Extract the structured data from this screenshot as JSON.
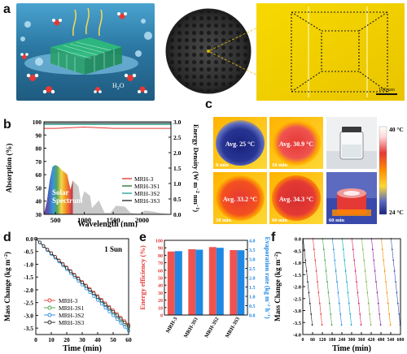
{
  "panel_labels": {
    "a": "a",
    "b": "b",
    "c": "c",
    "d": "d",
    "e": "e",
    "f": "f"
  },
  "panel_a": {
    "water_label": "H",
    "water_sub": "2",
    "water_tail": "O",
    "scale_bar": "100 μm",
    "colors": {
      "inset_left_bg": "#2e7ca7",
      "sample": "#3a3a3a",
      "micro_bg": "#f6d400",
      "micro_frame": "#e8c800"
    }
  },
  "panel_b": {
    "ylabel_left": "Absorption (%)",
    "ylabel_right_parts": [
      "Energy Density (W m",
      "−2",
      " nm",
      "−1",
      ")"
    ],
    "xlabel": "Wavelength (nm)",
    "solar_label": [
      "Solar",
      "Spectrum"
    ],
    "legend": [
      {
        "name": "MRH-3",
        "color": "#e53935"
      },
      {
        "name": "MRH-3S1",
        "color": "#2e7d32"
      },
      {
        "name": "MRH-3S2",
        "color": "#26a69a"
      },
      {
        "name": "MRH-3S3",
        "color": "#263238"
      }
    ],
    "xticks": [
      "500",
      "1000",
      "1500",
      "2000"
    ],
    "yticks_left": [
      "30",
      "40",
      "50",
      "60",
      "70",
      "80",
      "90",
      "100"
    ],
    "yticks_right": [
      "0.0",
      "0.5",
      "1.0",
      "1.5",
      "2.0",
      "2.5",
      "3.0"
    ]
  },
  "panel_c": {
    "thermal": [
      {
        "avg": "Avg. 25 °C",
        "time": "0 min"
      },
      {
        "avg": "Avg. 30.9 °C",
        "time": "10 min"
      },
      {
        "avg": "Avg. 33.2 °C",
        "time": "30 min"
      },
      {
        "avg": "Avg. 34.3 °C",
        "time": "60 min"
      }
    ],
    "photo_label": "60 min",
    "scale_top": "40 °C",
    "scale_bottom": "24 °C"
  },
  "panel_d": {
    "ylabel_parts": [
      "Mass Change (kg m",
      "−2",
      ")"
    ],
    "xlabel": "Time (min)",
    "sun": "1 Sun",
    "xticks": [
      "0",
      "10",
      "20",
      "30",
      "40",
      "50",
      "60"
    ],
    "yticks": [
      "0.0",
      "-0.5",
      "-1.0",
      "-1.5",
      "-2.0",
      "-2.5",
      "-3.0",
      "-3.5"
    ],
    "legend": [
      {
        "name": "MRH-3",
        "color": "#e53935"
      },
      {
        "name": "MRH-3S1",
        "color": "#43a047"
      },
      {
        "name": "MRH-3S2",
        "color": "#1e88e5"
      },
      {
        "name": "MRH-3S3",
        "color": "#222222"
      }
    ]
  },
  "panel_e": {
    "ylabel_left": "Energy efficiency (%)",
    "ylabel_right_parts": [
      "Evaporation rate (kg m",
      "−2",
      " h",
      "−1",
      ")"
    ],
    "categories": [
      "MRH-3",
      "MRH-3S1",
      "MRH-3S2",
      "MRH-3S3"
    ],
    "yticks_left": [
      "0",
      "10",
      "20",
      "30",
      "40",
      "50",
      "60",
      "70",
      "80",
      "90",
      "100"
    ],
    "yticks_right": [
      "0.0",
      "0.5",
      "1.0",
      "1.5",
      "2.0",
      "2.5",
      "3.0",
      "3.5",
      "4.0"
    ],
    "colors": {
      "left": "#ef5350",
      "right": "#1e88e5"
    }
  },
  "panel_f": {
    "ylabel_parts": [
      "Mass Change (kg m",
      "−2",
      ")"
    ],
    "xlabel": "Time (min)",
    "xticks": [
      "0",
      "60",
      "120",
      "180",
      "240",
      "300",
      "360",
      "420",
      "480",
      "540",
      "600"
    ],
    "yticks": [
      "0.0",
      "-0.5",
      "-1.0",
      "-1.5",
      "-2.0",
      "-2.5",
      "-3.0",
      "-3.5",
      "-4.0"
    ],
    "cycle_colors": [
      "#212121",
      "#e53935",
      "#43a047",
      "#1e88e5",
      "#00acc1",
      "#d81b60",
      "#7cb342",
      "#8e24aa",
      "#fb8c00",
      "#3949ab"
    ]
  },
  "chart_data": [
    {
      "type": "line",
      "panel": "b",
      "xlabel": "Wavelength (nm)",
      "ylabel": "Absorption (%)",
      "xlim": [
        300,
        2500
      ],
      "ylim": [
        30,
        100
      ],
      "y2label": "Energy Density (W m−2 nm−1)",
      "y2lim": [
        0,
        3.0
      ],
      "series": [
        {
          "name": "MRH-3",
          "x": [
            300,
            500,
            1000,
            1500,
            2000,
            2500
          ],
          "y": [
            95,
            95,
            96,
            95,
            95,
            95
          ]
        },
        {
          "name": "MRH-3S1",
          "x": [
            300,
            500,
            1000,
            1500,
            2000,
            2500
          ],
          "y": [
            98,
            98,
            98,
            98,
            98,
            98
          ]
        },
        {
          "name": "MRH-3S2",
          "x": [
            300,
            500,
            1000,
            1500,
            2000,
            2500
          ],
          "y": [
            98,
            98,
            98,
            98,
            98,
            98
          ]
        },
        {
          "name": "MRH-3S3",
          "x": [
            300,
            500,
            1000,
            1500,
            2000,
            2500
          ],
          "y": [
            99,
            99,
            99,
            99,
            99,
            99
          ]
        }
      ]
    },
    {
      "type": "line",
      "panel": "d",
      "xlabel": "Time (min)",
      "ylabel": "Mass Change (kg m−2)",
      "xlim": [
        0,
        60
      ],
      "ylim": [
        -3.6,
        0
      ],
      "x": [
        0,
        5,
        10,
        15,
        20,
        25,
        30,
        35,
        40,
        45,
        50,
        55,
        60
      ],
      "series": [
        {
          "name": "MRH-3",
          "values": [
            0,
            -0.28,
            -0.56,
            -0.84,
            -1.12,
            -1.4,
            -1.68,
            -1.96,
            -2.24,
            -2.52,
            -2.8,
            -3.08,
            -3.36
          ]
        },
        {
          "name": "MRH-3S1",
          "values": [
            0,
            -0.29,
            -0.58,
            -0.87,
            -1.16,
            -1.45,
            -1.74,
            -2.03,
            -2.32,
            -2.61,
            -2.9,
            -3.19,
            -3.48
          ]
        },
        {
          "name": "MRH-3S2",
          "values": [
            0,
            -0.3,
            -0.6,
            -0.9,
            -1.2,
            -1.5,
            -1.8,
            -2.1,
            -2.4,
            -2.7,
            -3.0,
            -3.3,
            -3.6
          ]
        },
        {
          "name": "MRH-3S3",
          "values": [
            0,
            -0.29,
            -0.57,
            -0.86,
            -1.14,
            -1.43,
            -1.71,
            -2.0,
            -2.28,
            -2.57,
            -2.85,
            -3.14,
            -3.42
          ]
        }
      ]
    },
    {
      "type": "bar",
      "panel": "e",
      "categories": [
        "MRH-3",
        "MRH-3S1",
        "MRH-3S2",
        "MRH-3S3"
      ],
      "ylabel": "Energy efficiency (%)",
      "y2label": "Evaporation rate (kg m−2 h−1)",
      "ylim": [
        0,
        100
      ],
      "y2lim": [
        0,
        4.0
      ],
      "series": [
        {
          "name": "Energy efficiency (%)",
          "axis": "left",
          "values": [
            85,
            88,
            91,
            87
          ]
        },
        {
          "name": "Evaporation rate (kg m−2 h−1)",
          "axis": "right",
          "values": [
            3.42,
            3.5,
            3.6,
            3.47
          ]
        }
      ]
    },
    {
      "type": "line",
      "panel": "f",
      "xlabel": "Time (min)",
      "ylabel": "Mass Change (kg m−2)",
      "xlim": [
        0,
        600
      ],
      "ylim": [
        -4.0,
        0
      ],
      "cycles": 10,
      "cycle_minutes": 60,
      "cycle_drop": -3.6
    }
  ]
}
